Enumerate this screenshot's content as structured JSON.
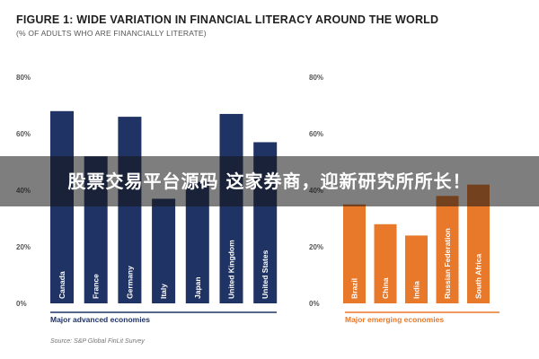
{
  "chart_data": {
    "type": "bar",
    "title": "FIGURE 1: WIDE VARIATION IN FINANCIAL LITERACY AROUND THE WORLD",
    "subtitle": "(% OF ADULTS WHO ARE FINANCIALLY LITERATE)",
    "source": "Source: S&P Global FinLit Survey",
    "colors": {
      "advanced": "#1f3364",
      "emerging": "#e8792a",
      "emerging_label": "#e8792a",
      "advanced_label": "#1f3364"
    },
    "panels": [
      {
        "name": "Major advanced economies",
        "ylim": [
          0,
          80
        ],
        "yticks": [
          "0%",
          "20%",
          "40%",
          "60%",
          "80%"
        ],
        "categories": [
          "Canada",
          "France",
          "Germany",
          "Italy",
          "Japan",
          "United Kingdom",
          "United States"
        ],
        "values": [
          68,
          52,
          66,
          37,
          43,
          67,
          57
        ]
      },
      {
        "name": "Major emerging economies",
        "ylim": [
          0,
          80
        ],
        "yticks": [
          "0%",
          "20%",
          "40%",
          "60%",
          "80%"
        ],
        "categories": [
          "Brazil",
          "China",
          "India",
          "Russian Federation",
          "South Africa"
        ],
        "values": [
          35,
          28,
          24,
          38,
          42
        ]
      }
    ]
  },
  "overlay": {
    "text": "股票交易平台源码 这家券商，迎新研究所所长！"
  }
}
